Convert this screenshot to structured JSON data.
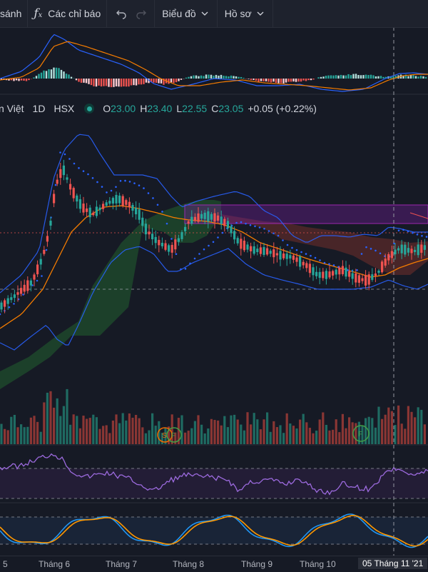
{
  "toolbar": {
    "compare_label": "sánh",
    "indicators_label": "Các chỉ báo",
    "chart_label": "Biểu đồ",
    "profile_label": "Hồ sơ"
  },
  "legend": {
    "symbol": "n Việt",
    "interval": "1D",
    "exchange": "HSX",
    "open_key": "O",
    "open": "23.00",
    "high_key": "H",
    "high": "23.40",
    "low_key": "L",
    "low": "22.55",
    "close_key": "C",
    "close": "23.05",
    "change": "+0.05 (+0.22%)"
  },
  "xaxis": {
    "labels": [
      "5",
      "Tháng 6",
      "Tháng 7",
      "Tháng 8",
      "Tháng 9",
      "Tháng 10"
    ],
    "crosshair_date": "05 Tháng 11 '21"
  },
  "markers": {
    "s": "S",
    "f": "F"
  },
  "colors": {
    "up": "#26a69a",
    "down": "#ef5350",
    "bb": "#2962ff",
    "ema": "#f57c00",
    "rsi": "#9c6ade",
    "stoch_k": "#2196f3",
    "stoch_d": "#ff9800",
    "zone": "#9c27b0"
  },
  "icons": [
    "fx-icon",
    "undo-icon",
    "redo-icon",
    "chevron-down-icon"
  ]
}
